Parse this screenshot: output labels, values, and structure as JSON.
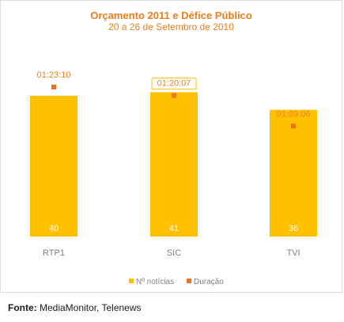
{
  "chart_data": {
    "type": "bar",
    "title": "Orçamento 2011 e Défice Público",
    "subtitle": "20 a 26 de Setembro de 2010",
    "categories": [
      "RTP1",
      "SIC",
      "TVI"
    ],
    "series": [
      {
        "name": "Nº notícias",
        "type": "bar",
        "values": [
          40,
          41,
          36
        ],
        "color": "#ffc000"
      },
      {
        "name": "Duração",
        "type": "point",
        "values": [
          "01:23:10",
          "01:20:07",
          "01:09:06"
        ],
        "color": "#f07020"
      }
    ],
    "legend_position": "bottom",
    "grid": false
  },
  "colors": {
    "accent": "#ef7d1a",
    "bar": "#ffc000",
    "marker": "#f07020",
    "axis_text": "#7f7f7f"
  },
  "source": {
    "label": "Fonte:",
    "text": "MediaMonitor, Telenews"
  }
}
